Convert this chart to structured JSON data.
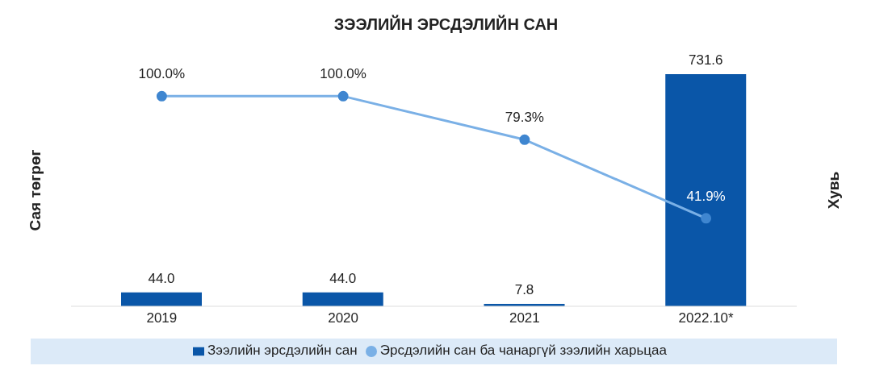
{
  "chart_data": {
    "type": "bar",
    "title": "ЗЭЭЛИЙН ЭРСДЭЛИЙН САН",
    "ylabel": "Сая төгрөг",
    "y2label": "Хувь",
    "categories": [
      "2019",
      "2020",
      "2021",
      "2022.10*"
    ],
    "series": [
      {
        "name": "Зээлийн эрсдэлийн сан",
        "color": "#0a56a8",
        "values": [
          44.0,
          44.0,
          7.8,
          731.6
        ],
        "value_labels": [
          "44.0",
          "44.0",
          "7.8",
          "731.6"
        ]
      },
      {
        "name": "Эрсдэлийн сан ба чанаргүй зээлийн харьцаа",
        "type": "line",
        "axis": "y2",
        "color": "#7ab0e6",
        "values": [
          100.0,
          100.0,
          79.3,
          41.9
        ],
        "value_labels": [
          "100.0%",
          "100.0%",
          "79.3%",
          "41.9%"
        ]
      }
    ],
    "tick_labels": "x",
    "legend": "bottom",
    "marker": "circle",
    "line_style": "solid"
  }
}
